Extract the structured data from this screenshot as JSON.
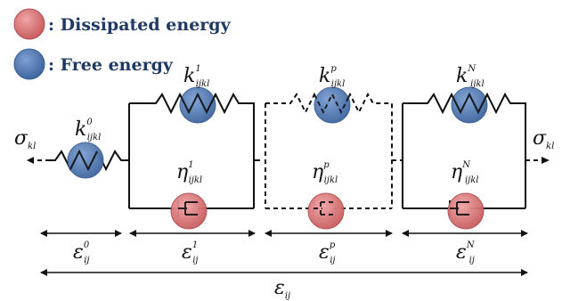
{
  "legend": {
    "dissipated": {
      "label": ": Dissipated energy",
      "color": "#d9696b"
    },
    "free": {
      "label": ": Free energy",
      "color": "#4f78b2"
    }
  },
  "stress_left": {
    "base": "σ",
    "sub": "kl"
  },
  "stress_right": {
    "base": "σ",
    "sub": "kl"
  },
  "springs": [
    {
      "base": "k",
      "sub": "ijkl",
      "sup": "0"
    },
    {
      "base": "k",
      "sub": "ijkl",
      "sup": "1"
    },
    {
      "base": "k",
      "sub": "ijkl",
      "sup": "p"
    },
    {
      "base": "k",
      "sub": "ijkl",
      "sup": "N"
    }
  ],
  "dampers": [
    {
      "base": "η",
      "sub": "ijkl",
      "sup": "1"
    },
    {
      "base": "η",
      "sub": "ijkl",
      "sup": "p"
    },
    {
      "base": "η",
      "sub": "ijkl",
      "sup": "N"
    }
  ],
  "strains": [
    {
      "base": "ε",
      "sub": "ij",
      "sup": "0"
    },
    {
      "base": "ε",
      "sub": "ij",
      "sup": "1"
    },
    {
      "base": "ε",
      "sub": "ij",
      "sup": "p"
    },
    {
      "base": "ε",
      "sub": "ij",
      "sup": "N"
    }
  ],
  "total_strain": {
    "base": "ε",
    "sub": "ij"
  },
  "colors": {
    "dissipated": "#d9696b",
    "free": "#4f78b2",
    "line": "#111111"
  }
}
